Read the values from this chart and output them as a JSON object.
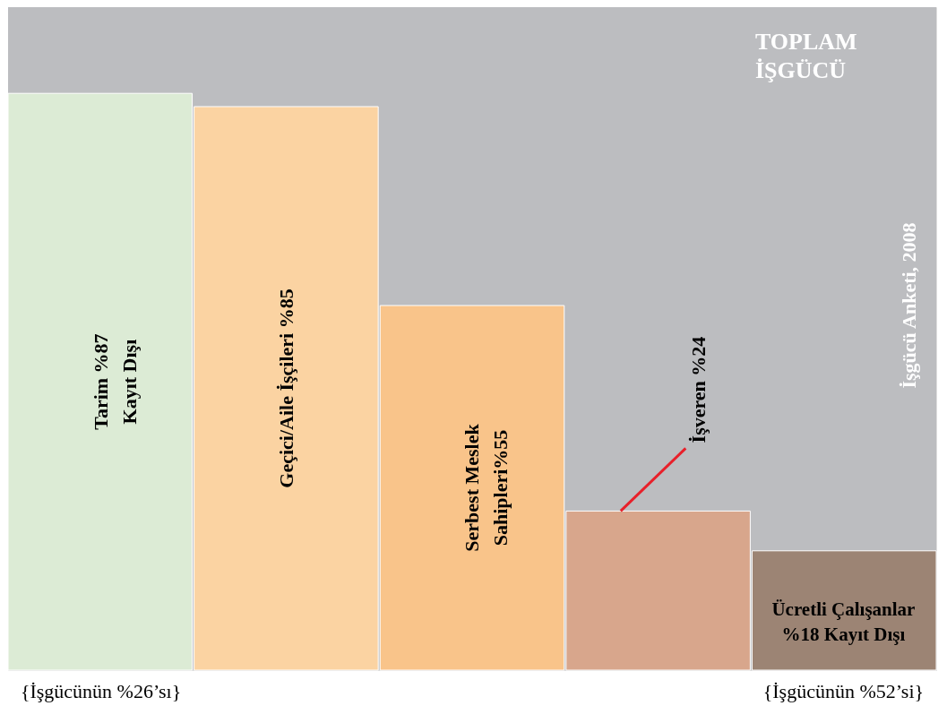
{
  "chart_data": {
    "type": "bar",
    "categories": [
      null,
      null,
      null,
      null,
      null
    ],
    "values": [
      87,
      85,
      55,
      24,
      18
    ],
    "value_labels": [
      "Tarim %87\nKayıt Dışı",
      "Geçici/Aile İşçileri %85",
      "Serbest Meslek\nSahipleri%55",
      "İşveren %24",
      "Ücretli Çalışanlar %18 Kayıt Dışı"
    ],
    "colors": [
      "#dcebd5",
      "#fbd3a2",
      "#f9c48a",
      "#d8a68c",
      "#9c8474"
    ],
    "annotations": [
      "TOPLAM\nİŞGÜCÜ",
      "{İşgücünün %26’sı}",
      "{İşgücünün %52’si}",
      "İşgücü Anketi, 2008"
    ]
  }
}
